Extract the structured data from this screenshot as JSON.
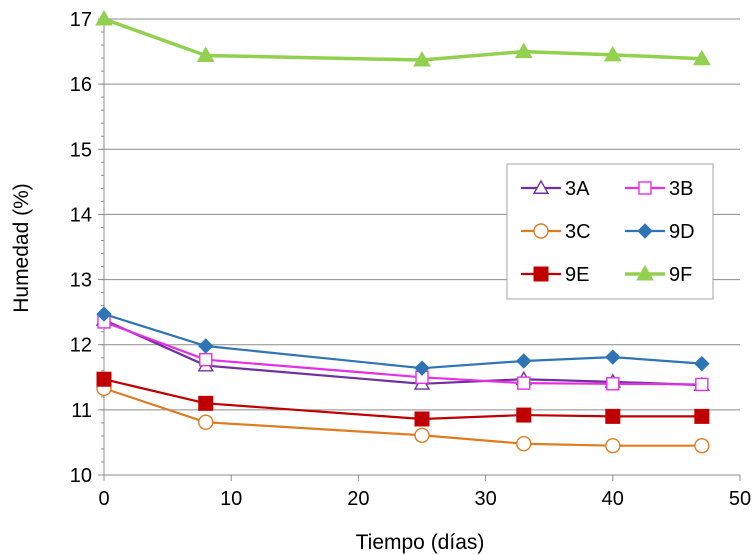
{
  "chart_data": {
    "type": "line",
    "title": "",
    "xlabel": "Tiempo (días)",
    "ylabel": "Humedad (%)",
    "xlim": [
      0,
      50
    ],
    "ylim": [
      10,
      17
    ],
    "xticks": [
      0,
      10,
      20,
      30,
      40,
      50
    ],
    "yticks": [
      10,
      11,
      12,
      13,
      14,
      15,
      16,
      17
    ],
    "grid": "horizontal",
    "legend_position": "right",
    "series": [
      {
        "name": "3A",
        "color": "#7030A0",
        "marker": "triangle-open",
        "x": [
          0,
          8,
          25,
          33,
          40,
          47
        ],
        "y": [
          12.38,
          11.68,
          11.4,
          11.47,
          11.43,
          11.38
        ]
      },
      {
        "name": "3B",
        "color": "#E62EE6",
        "marker": "square-open",
        "x": [
          0,
          8,
          25,
          33,
          40,
          47
        ],
        "y": [
          12.35,
          11.77,
          11.5,
          11.41,
          11.4,
          11.39
        ]
      },
      {
        "name": "3C",
        "color": "#E07B20",
        "marker": "circle-open",
        "x": [
          0,
          8,
          25,
          33,
          40,
          47
        ],
        "y": [
          11.33,
          10.81,
          10.61,
          10.48,
          10.45,
          10.45
        ]
      },
      {
        "name": "9D",
        "color": "#2E75B6",
        "marker": "diamond-filled",
        "x": [
          0,
          8,
          25,
          33,
          40,
          47
        ],
        "y": [
          12.47,
          11.98,
          11.64,
          11.75,
          11.81,
          11.71
        ]
      },
      {
        "name": "9E",
        "color": "#C00000",
        "marker": "square-filled",
        "x": [
          0,
          8,
          25,
          33,
          40,
          47
        ],
        "y": [
          11.47,
          11.1,
          10.86,
          10.92,
          10.9,
          10.9
        ]
      },
      {
        "name": "9F",
        "color": "#92D050",
        "marker": "triangle-filled",
        "x": [
          0,
          8,
          25,
          33,
          40,
          47
        ],
        "y": [
          17.0,
          16.44,
          16.37,
          16.5,
          16.45,
          16.39
        ]
      }
    ]
  }
}
